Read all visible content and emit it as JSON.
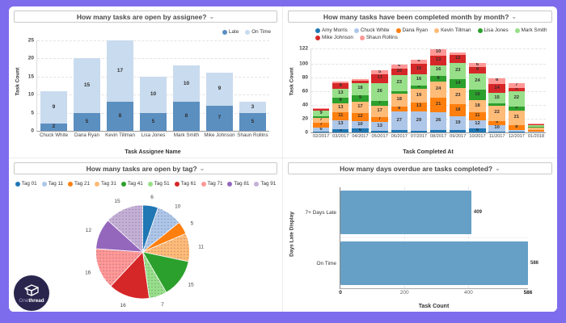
{
  "ui": {
    "title_caret": "⌄"
  },
  "logo": {
    "name_light": "One",
    "name_bold": "thread"
  },
  "chart_data": [
    {
      "id": "open-by-assignee",
      "type": "bar",
      "stacked": true,
      "title": "How many tasks are open by assignee?",
      "categories": [
        "Chuck White",
        "Dana Ryan",
        "Kevin Tillman",
        "Lisa Jones",
        "Mark Smith",
        "Mike Johnson",
        "Shaun Rollins"
      ],
      "series": [
        {
          "name": "Late",
          "color": "#5b8fc0",
          "values": [
            2,
            5,
            8,
            5,
            8,
            7,
            5
          ]
        },
        {
          "name": "On Time",
          "color": "#c9dbee",
          "values": [
            9,
            15,
            17,
            10,
            10,
            9,
            3
          ]
        }
      ],
      "xlabel": "Task Assignee Name",
      "ylabel": "Task Count",
      "ylim": [
        0,
        25
      ],
      "yticks": [
        0,
        5,
        10,
        15,
        20,
        25
      ],
      "legend_position": "top-right",
      "grid": true
    },
    {
      "id": "completed-month-by-month",
      "type": "bar",
      "stacked": true,
      "title": "How many tasks have been completed month by month?",
      "categories": [
        "02/2017",
        "03/2017",
        "04/2017",
        "05/2017",
        "06/2017",
        "07/2017",
        "08/2017",
        "09/2017",
        "10/2017",
        "11/2017",
        "12/2017",
        "01/2018"
      ],
      "series": [
        {
          "name": "Amy Morris",
          "color": "#1f77b4",
          "dotted": false,
          "values": [
            1,
            5,
            6,
            2,
            3,
            2,
            3,
            4,
            6,
            1,
            1,
            0
          ]
        },
        {
          "name": "Chuck White",
          "color": "#aec7e8",
          "dotted": true,
          "values": [
            6,
            13,
            10,
            13,
            27,
            29,
            26,
            19,
            12,
            10,
            2,
            1
          ]
        },
        {
          "name": "Dana Ryan",
          "color": "#ff7f0e",
          "dotted": false,
          "values": [
            7,
            11,
            12,
            7,
            8,
            13,
            21,
            18,
            11,
            6,
            8,
            3
          ]
        },
        {
          "name": "Kevin Tillman",
          "color": "#ffbb78",
          "dotted": true,
          "values": [
            7,
            13,
            17,
            17,
            18,
            19,
            24,
            23,
            18,
            22,
            21,
            3
          ]
        },
        {
          "name": "Lisa Jones",
          "color": "#2ca02c",
          "dotted": false,
          "values": [
            2,
            8,
            9,
            7,
            4,
            5,
            8,
            14,
            15,
            3,
            6,
            1
          ]
        },
        {
          "name": "Mark Smith",
          "color": "#98df8a",
          "dotted": true,
          "values": [
            9,
            13,
            18,
            26,
            23,
            16,
            16,
            23,
            24,
            15,
            22,
            3
          ]
        },
        {
          "name": "Mike Johnson",
          "color": "#d62728",
          "dotted": false,
          "values": [
            2,
            9,
            3,
            13,
            10,
            16,
            13,
            12,
            9,
            14,
            5,
            1
          ]
        },
        {
          "name": "Shaun Rollins",
          "color": "#ff9896",
          "dotted": true,
          "values": [
            1,
            2,
            3,
            5,
            6,
            6,
            10,
            3,
            6,
            8,
            7,
            1
          ]
        }
      ],
      "xlabel": "Task Completed At",
      "ylabel": "Task Count",
      "ylim": [
        0,
        122
      ],
      "yticks": [
        0,
        20,
        40,
        60,
        80,
        100,
        122
      ],
      "legend_position": "top-left",
      "grid": true
    },
    {
      "id": "open-by-tag",
      "type": "pie",
      "title": "How many tasks are open by tag?",
      "labels": [
        "Tag 01",
        "Tag 11",
        "Tag 21",
        "Tag 31",
        "Tag 41",
        "Tag 51",
        "Tag 61",
        "Tag 71",
        "Tag 81",
        "Tag 91"
      ],
      "values": [
        6,
        10,
        5,
        11,
        15,
        7,
        16,
        16,
        12,
        15
      ],
      "colors": [
        "#1f77b4",
        "#aec7e8",
        "#ff7f0e",
        "#ffbb78",
        "#2ca02c",
        "#98df8a",
        "#d62728",
        "#ff9896",
        "#9467bd",
        "#c5b0d5"
      ],
      "dotted": [
        false,
        true,
        false,
        true,
        false,
        true,
        false,
        true,
        false,
        true
      ],
      "legend_position": "top-center"
    },
    {
      "id": "days-overdue",
      "type": "bar",
      "orientation": "horizontal",
      "title": "How many days overdue are tasks completed?",
      "categories": [
        "7+ Days Late",
        "On Time"
      ],
      "values": [
        409,
        586
      ],
      "bar_color": "#67a0c6",
      "xlabel": "Task Count",
      "ylabel": "Days Late Display",
      "xlim": [
        0,
        586
      ],
      "xticks": [
        0,
        200,
        400,
        586
      ],
      "grid": true
    }
  ]
}
